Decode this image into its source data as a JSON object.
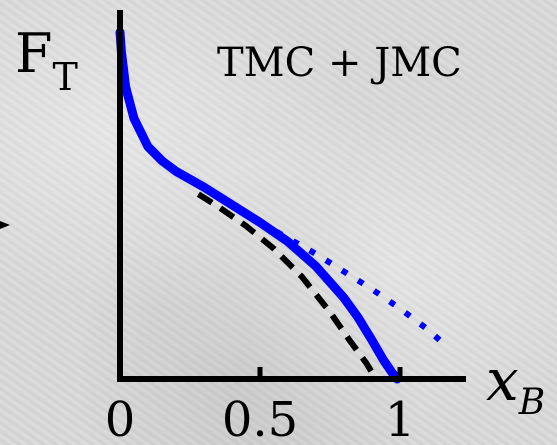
{
  "chart_data": {
    "type": "line",
    "title": "TMC + JMC",
    "ylabel_main": "F",
    "ylabel_sub": "T",
    "xlabel_main": "x",
    "xlabel_sub": "B",
    "xticks": [
      "0",
      "0.5",
      "1"
    ],
    "xlim": [
      0,
      1.2
    ],
    "ylim": [
      0,
      1
    ],
    "grid": false,
    "series": [
      {
        "style": "solid",
        "color": "#0000ff",
        "x": [
          0.0,
          0.005,
          0.02,
          0.05,
          0.1,
          0.15,
          0.2,
          0.3,
          0.4,
          0.5,
          0.6,
          0.7,
          0.8,
          0.85,
          0.9,
          0.94,
          0.97,
          0.99
        ],
        "y": [
          0.985,
          0.93,
          0.83,
          0.74,
          0.66,
          0.62,
          0.59,
          0.545,
          0.495,
          0.445,
          0.39,
          0.32,
          0.23,
          0.175,
          0.11,
          0.055,
          0.02,
          0.0
        ]
      },
      {
        "style": "dashed",
        "color": "#000000",
        "x": [
          0.28,
          0.35,
          0.45,
          0.55,
          0.65,
          0.75,
          0.82,
          0.88,
          0.91
        ],
        "y": [
          0.525,
          0.49,
          0.435,
          0.37,
          0.29,
          0.19,
          0.11,
          0.045,
          0.005
        ]
      },
      {
        "style": "dotted",
        "color": "#0000ff",
        "x": [
          0.5,
          0.6,
          0.7,
          0.8,
          0.9,
          1.0,
          1.1,
          1.17
        ],
        "y": [
          0.445,
          0.4,
          0.355,
          0.305,
          0.255,
          0.2,
          0.14,
          0.09
        ]
      }
    ]
  }
}
